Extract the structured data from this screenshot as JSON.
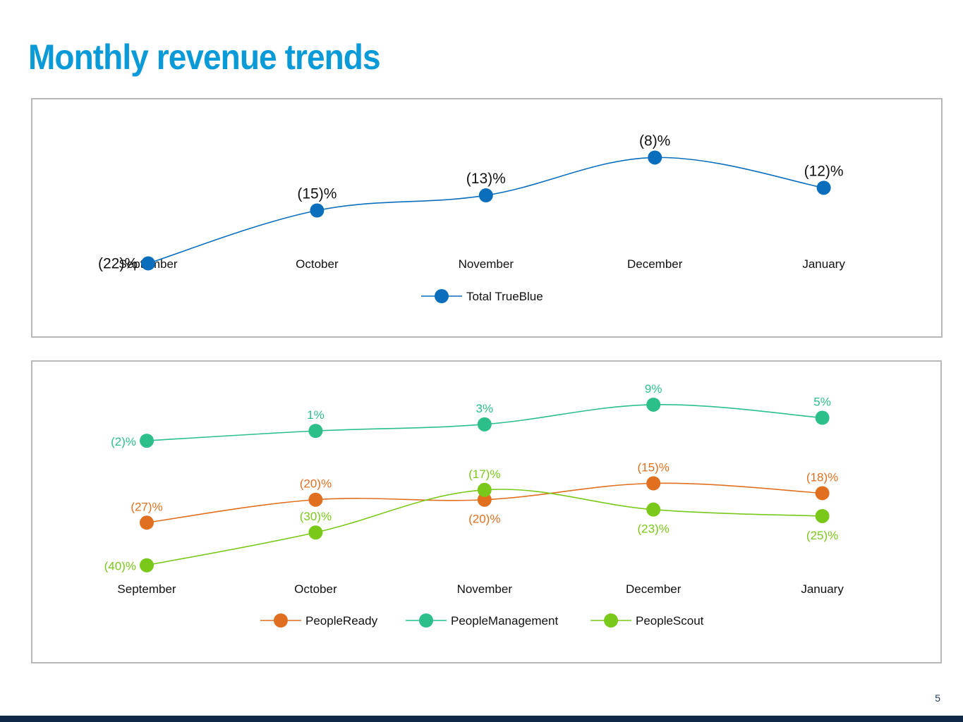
{
  "page": {
    "title": "Monthly revenue trends",
    "page_number": "5",
    "footer_color": "#0f2847",
    "title_color": "#0a9ad8"
  },
  "chart_data": [
    {
      "type": "line",
      "categories": [
        "September",
        "October",
        "November",
        "December",
        "January"
      ],
      "series": [
        {
          "name": "Total TrueBlue",
          "color": "#0a6ebd",
          "values": [
            -22,
            -15,
            -13,
            -8,
            -12
          ],
          "labels": [
            "(22)%",
            "(15)%",
            "(13)%",
            "(8)%",
            "(12)%"
          ]
        }
      ],
      "title": "",
      "xlabel": "",
      "ylabel": "",
      "ylim": [
        -24,
        -6
      ],
      "grid": false,
      "legend": "bottom",
      "smooth": true
    },
    {
      "type": "line",
      "categories": [
        "September",
        "October",
        "November",
        "December",
        "January"
      ],
      "series": [
        {
          "name": "PeopleReady",
          "color": "#e07020",
          "values": [
            -27,
            -20,
            -20,
            -15,
            -18
          ],
          "labels": [
            "(27)%",
            "(20)%",
            "(20)%",
            "(15)%",
            "(18)%"
          ]
        },
        {
          "name": "PeopleManagement",
          "color": "#2cbf8a",
          "values": [
            -2,
            1,
            3,
            9,
            5
          ],
          "labels": [
            "(2)%",
            "1%",
            "3%",
            "9%",
            "5%"
          ]
        },
        {
          "name": "PeopleScout",
          "color": "#7ac81a",
          "values": [
            -40,
            -30,
            -17,
            -23,
            -25
          ],
          "labels": [
            "(40)%",
            "(30)%",
            "(17)%",
            "(23)%",
            "(25)%"
          ]
        }
      ],
      "title": "",
      "xlabel": "",
      "ylabel": "",
      "ylim": [
        -42,
        12
      ],
      "grid": false,
      "legend": "bottom",
      "smooth": true
    }
  ]
}
